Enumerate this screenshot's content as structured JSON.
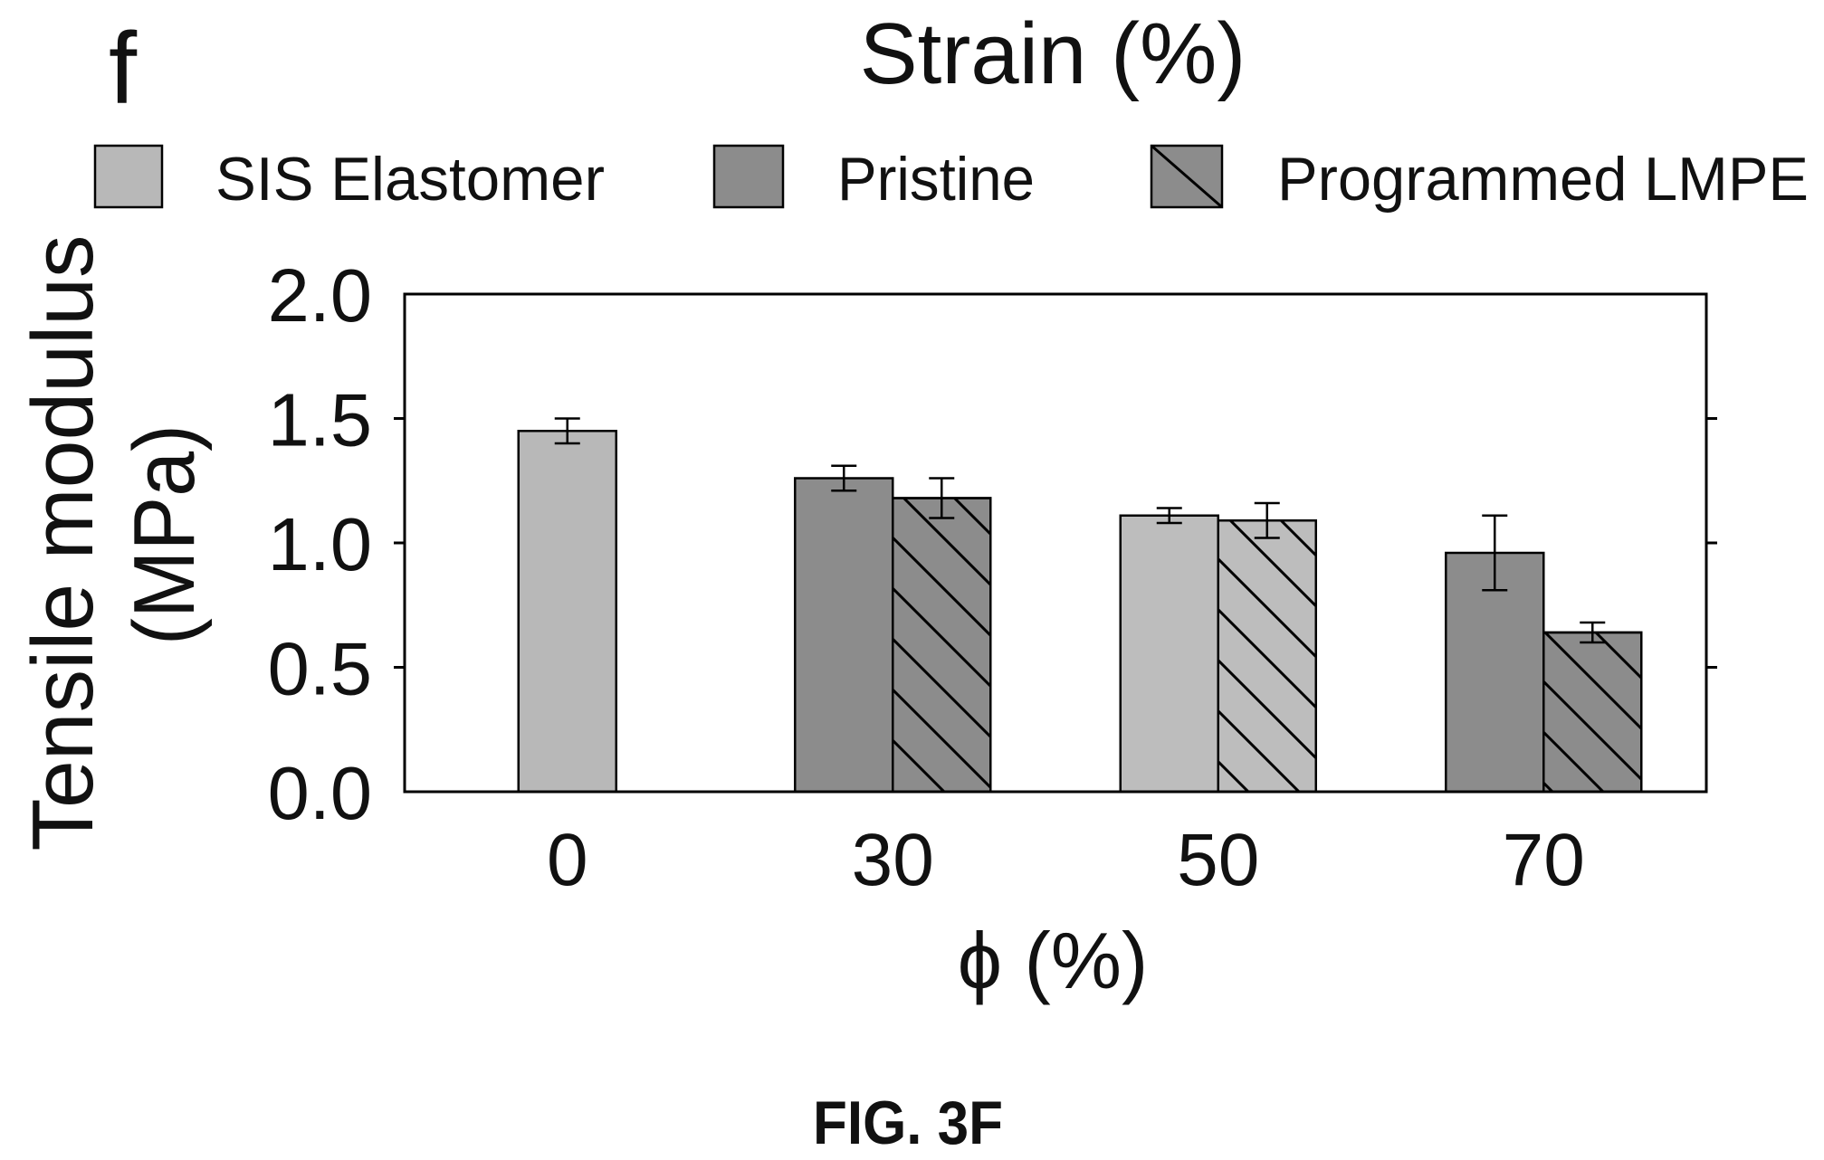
{
  "figure": {
    "panel_label": "f",
    "caption": "FIG. 3F"
  },
  "chart_data": {
    "type": "bar",
    "title": "Strain (%)",
    "xlabel": "ϕ (%)",
    "ylabel_lines": [
      "Tensile modulus",
      "(MPa)"
    ],
    "categories": [
      "0",
      "30",
      "50",
      "70"
    ],
    "ylim": [
      0,
      2.0
    ],
    "yticks": [
      "0.0",
      "0.5",
      "1.0",
      "1.5",
      "2.0"
    ],
    "legend": "top",
    "grid": false,
    "series": [
      {
        "name": "SIS Elastomer",
        "color": "#b8b8b8",
        "hatched": false,
        "values": [
          1.45,
          null,
          null,
          null
        ],
        "errors": [
          0.05,
          null,
          null,
          null
        ]
      },
      {
        "name": "Pristine",
        "color": "#8c8c8c",
        "hatched": false,
        "values": [
          null,
          1.26,
          1.11,
          0.96
        ],
        "errors": [
          null,
          0.05,
          0.03,
          0.15
        ],
        "point_colors": [
          null,
          null,
          "#bdbdbd",
          null
        ]
      },
      {
        "name": "Programmed LMPE",
        "color": "#8c8c8c",
        "hatched": true,
        "values": [
          null,
          1.18,
          1.09,
          0.64
        ],
        "errors": [
          null,
          0.08,
          0.07,
          0.04
        ],
        "point_colors": [
          null,
          null,
          "#bdbdbd",
          null
        ]
      }
    ]
  }
}
